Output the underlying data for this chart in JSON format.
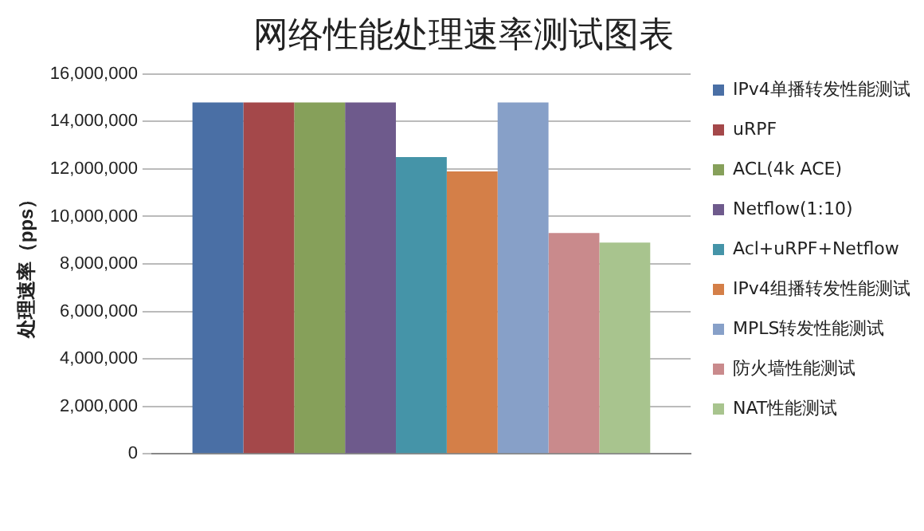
{
  "chart_data": {
    "type": "bar",
    "title": "网络性能处理速率测试图表",
    "ylabel": "处理速率（pps）",
    "categories": [
      null
    ],
    "series": [
      {
        "name": "IPv4单播转发性能测试",
        "color": "#4a6fa5",
        "values": [
          14800000
        ]
      },
      {
        "name": "uRPF",
        "color": "#a4484a",
        "values": [
          14800000
        ]
      },
      {
        "name": "ACL(4k ACE)",
        "color": "#86a05a",
        "values": [
          14800000
        ]
      },
      {
        "name": "Netflow(1:10)",
        "color": "#6e5a8c",
        "values": [
          14800000
        ]
      },
      {
        "name": "Acl+uRPF+Netflow",
        "color": "#4594a8",
        "values": [
          12500000
        ]
      },
      {
        "name": "IPv4组播转发性能测试",
        "color": "#d47f48",
        "values": [
          11900000
        ]
      },
      {
        "name": "MPLS转发性能测试",
        "color": "#87a0c8",
        "values": [
          14800000
        ]
      },
      {
        "name": "防火墙性能测试",
        "color": "#c98a8c",
        "values": [
          9300000
        ]
      },
      {
        "name": "NAT性能测试",
        "color": "#a8c48e",
        "values": [
          8900000
        ]
      }
    ],
    "ylim": [
      0,
      16000000
    ],
    "yticks": [
      0,
      {
        "value": 2000000,
        "label": "2,000,000"
      },
      {
        "value": 4000000,
        "label": "4,000,000"
      },
      {
        "value": 6000000,
        "label": "6,000,000"
      },
      {
        "value": 8000000,
        "label": "8,000,000"
      },
      {
        "value": 10000000,
        "label": "10,000,000"
      },
      {
        "value": 12000000,
        "label": "12,000,000"
      },
      {
        "value": 14000000,
        "label": "14,000,000"
      },
      {
        "value": 16000000,
        "label": "16,000,000"
      }
    ],
    "grid": "y",
    "legend": "right"
  }
}
